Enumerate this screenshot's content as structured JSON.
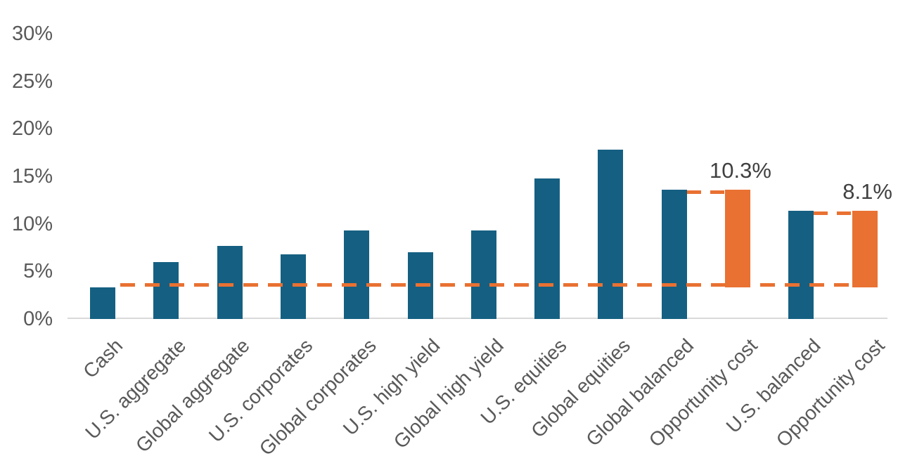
{
  "chart_data": {
    "type": "bar",
    "title": "",
    "legend": "none",
    "grid": "off",
    "y_axis": {
      "min": 0,
      "max": 30,
      "step": 5,
      "unit": "%",
      "tick_labels": [
        "0%",
        "5%",
        "10%",
        "15%",
        "20%",
        "25%",
        "30%"
      ]
    },
    "categories": [
      "Cash",
      "U.S. aggregate",
      "Global aggregate",
      "U.S. corporates",
      "Global corporates",
      "U.S. high yield",
      "Global high yield",
      "U.S. equities",
      "Global equities",
      "Global balanced",
      "Opportunity cost",
      "U.S. balanced",
      "Opportunity cost"
    ],
    "bars": [
      {
        "category": "Cash",
        "value": 3.3,
        "base": 0,
        "series": "asset"
      },
      {
        "category": "U.S. aggregate",
        "value": 6.0,
        "base": 0,
        "series": "asset"
      },
      {
        "category": "Global aggregate",
        "value": 7.7,
        "base": 0,
        "series": "asset"
      },
      {
        "category": "U.S. corporates",
        "value": 6.8,
        "base": 0,
        "series": "asset"
      },
      {
        "category": "Global corporates",
        "value": 9.3,
        "base": 0,
        "series": "asset"
      },
      {
        "category": "U.S. high yield",
        "value": 7.0,
        "base": 0,
        "series": "asset"
      },
      {
        "category": "Global high yield",
        "value": 9.3,
        "base": 0,
        "series": "asset"
      },
      {
        "category": "U.S. equities",
        "value": 14.8,
        "base": 0,
        "series": "asset"
      },
      {
        "category": "Global equities",
        "value": 17.8,
        "base": 0,
        "series": "asset"
      },
      {
        "category": "Global balanced",
        "value": 13.6,
        "base": 0,
        "series": "asset"
      },
      {
        "category": "Opportunity cost",
        "value": 13.6,
        "base": 3.3,
        "series": "opportunity",
        "data_label": "10.3%"
      },
      {
        "category": "U.S. balanced",
        "value": 11.4,
        "base": 0,
        "series": "asset"
      },
      {
        "category": "Opportunity cost",
        "value": 11.4,
        "base": 3.3,
        "series": "opportunity",
        "data_label": "8.1%"
      }
    ],
    "reference_line": {
      "value": 3.5,
      "style": "dashed",
      "starts_after_category": "Cash",
      "ends_at_category_index": 12
    },
    "connectors": [
      {
        "value": 13.6,
        "from_category_index": 9,
        "to_category_index": 10,
        "style": "dashed"
      },
      {
        "value": 11.4,
        "from_category_index": 11,
        "to_category_index": 12,
        "style": "dashed"
      }
    ],
    "colors": {
      "asset_bar": "#156082",
      "opportunity_bar": "#E97132",
      "reference_line": "#E97132",
      "connector_line": "#E97132",
      "axis_line": "#D9D9D9",
      "tick_label_text": "#595959",
      "category_label_text": "#595959",
      "data_label_text": "#404040"
    }
  }
}
